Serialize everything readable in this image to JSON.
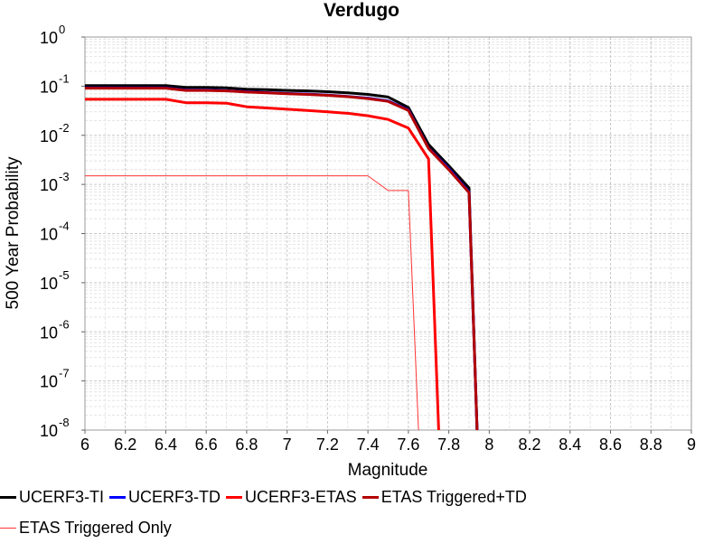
{
  "chart_data": {
    "type": "line",
    "title": "Verdugo",
    "xlabel": "Magnitude",
    "ylabel": "500 Year Probability",
    "xlim": [
      6,
      9
    ],
    "ylim": [
      1e-08,
      1
    ],
    "yscale": "log",
    "grid": true,
    "x_ticks": [
      "6",
      "6.2",
      "6.4",
      "6.6",
      "6.8",
      "7",
      "7.2",
      "7.4",
      "7.6",
      "7.8",
      "8",
      "8.2",
      "8.4",
      "8.6",
      "8.8",
      "9"
    ],
    "y_ticks": [
      {
        "base": "10",
        "exp": "0"
      },
      {
        "base": "10",
        "exp": "-1"
      },
      {
        "base": "10",
        "exp": "-2"
      },
      {
        "base": "10",
        "exp": "-3"
      },
      {
        "base": "10",
        "exp": "-4"
      },
      {
        "base": "10",
        "exp": "-5"
      },
      {
        "base": "10",
        "exp": "-6"
      },
      {
        "base": "10",
        "exp": "-7"
      },
      {
        "base": "10",
        "exp": "-8"
      }
    ],
    "legend_position": "bottom",
    "series": [
      {
        "name": "UCERF3-TI",
        "color": "#000000",
        "line_width": 3,
        "x": [
          6.0,
          6.1,
          6.2,
          6.3,
          6.4,
          6.5,
          6.6,
          6.7,
          6.8,
          6.9,
          7.0,
          7.1,
          7.2,
          7.3,
          7.4,
          7.5,
          7.6,
          7.7,
          7.8,
          7.9,
          7.94
        ],
        "y": [
          0.103,
          0.103,
          0.103,
          0.103,
          0.103,
          0.094,
          0.094,
          0.092,
          0.087,
          0.085,
          0.082,
          0.08,
          0.077,
          0.073,
          0.068,
          0.06,
          0.037,
          0.0065,
          0.0024,
          0.00085,
          1e-08
        ]
      },
      {
        "name": "UCERF3-TD",
        "color": "#0000ff",
        "line_width": 3,
        "x": [
          6.0,
          6.1,
          6.2,
          6.3,
          6.4,
          6.5,
          6.6,
          6.7,
          6.8,
          6.9,
          7.0,
          7.1,
          7.2,
          7.3,
          7.4,
          7.5,
          7.6,
          7.7,
          7.8,
          7.9,
          7.94
        ],
        "y": [
          0.092,
          0.092,
          0.092,
          0.092,
          0.092,
          0.083,
          0.083,
          0.081,
          0.077,
          0.074,
          0.071,
          0.069,
          0.066,
          0.062,
          0.057,
          0.05,
          0.033,
          0.0055,
          0.0021,
          0.0007,
          1e-08
        ]
      },
      {
        "name": "UCERF3-ETAS",
        "color": "#ff0000",
        "line_width": 3,
        "x": [
          6.0,
          6.1,
          6.2,
          6.3,
          6.4,
          6.5,
          6.6,
          6.7,
          6.8,
          6.9,
          7.0,
          7.1,
          7.2,
          7.3,
          7.4,
          7.5,
          7.6,
          7.7,
          7.75
        ],
        "y": [
          0.054,
          0.054,
          0.054,
          0.054,
          0.054,
          0.046,
          0.046,
          0.045,
          0.038,
          0.036,
          0.034,
          0.032,
          0.03,
          0.028,
          0.025,
          0.021,
          0.014,
          0.0033,
          1e-08
        ]
      },
      {
        "name": "ETAS Triggered+TD",
        "color": "#b30000",
        "line_width": 3,
        "x": [
          6.0,
          6.1,
          6.2,
          6.3,
          6.4,
          6.5,
          6.6,
          6.7,
          6.8,
          6.9,
          7.0,
          7.1,
          7.2,
          7.3,
          7.4,
          7.5,
          7.6,
          7.7,
          7.8,
          7.9,
          7.94
        ],
        "y": [
          0.091,
          0.091,
          0.091,
          0.091,
          0.091,
          0.082,
          0.082,
          0.08,
          0.076,
          0.073,
          0.07,
          0.068,
          0.065,
          0.061,
          0.056,
          0.049,
          0.032,
          0.0054,
          0.002,
          0.00068,
          1e-08
        ]
      },
      {
        "name": "ETAS Triggered Only",
        "color": "#ff3333",
        "line_width": 1,
        "x": [
          6.0,
          6.2,
          6.4,
          6.6,
          6.8,
          7.0,
          7.2,
          7.4,
          7.5,
          7.6,
          7.65
        ],
        "y": [
          0.0015,
          0.0015,
          0.0015,
          0.0015,
          0.0015,
          0.0015,
          0.0015,
          0.0015,
          0.00075,
          0.00075,
          1e-08
        ]
      }
    ]
  }
}
